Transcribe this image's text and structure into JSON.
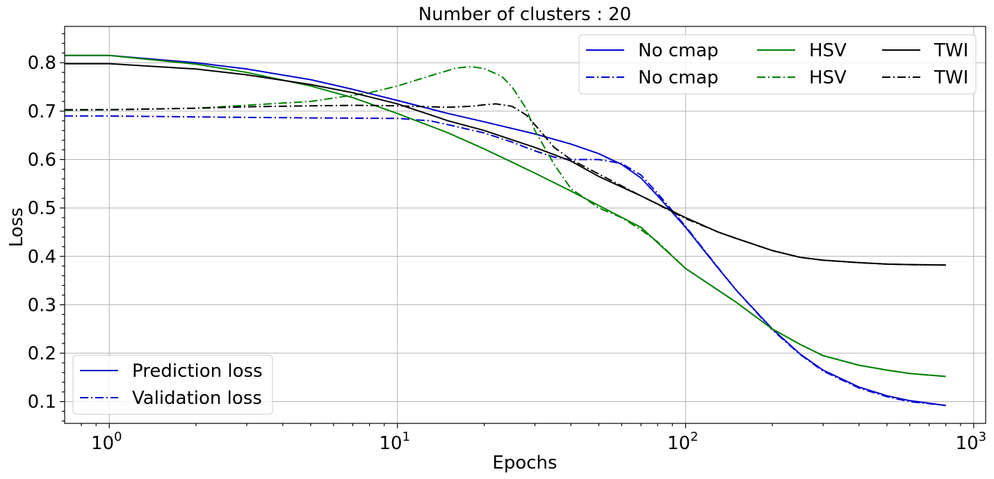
{
  "chart_data": {
    "type": "line",
    "title": "Number of clusters : 20",
    "xlabel": "Epochs",
    "ylabel": "Loss",
    "xscale": "log",
    "xlim": [
      0.7,
      1100
    ],
    "ylim": [
      0.055,
      0.875
    ],
    "xticks": [
      {
        "value": 1,
        "base": "10",
        "exp": "0"
      },
      {
        "value": 10,
        "base": "10",
        "exp": "1"
      },
      {
        "value": 100,
        "base": "10",
        "exp": "2"
      },
      {
        "value": 1000,
        "base": "10",
        "exp": "3"
      }
    ],
    "yticks": [
      {
        "value": 0.1,
        "label": "0.1"
      },
      {
        "value": 0.2,
        "label": "0.2"
      },
      {
        "value": 0.3,
        "label": "0.3"
      },
      {
        "value": 0.4,
        "label": "0.4"
      },
      {
        "value": 0.5,
        "label": "0.5"
      },
      {
        "value": 0.6,
        "label": "0.6"
      },
      {
        "value": 0.7,
        "label": "0.7"
      },
      {
        "value": 0.8,
        "label": "0.8"
      }
    ],
    "grid": true,
    "series": [
      {
        "name": "No cmap",
        "color": "#0000cc",
        "style": "solid",
        "points": [
          [
            0.7,
            0.815
          ],
          [
            1,
            0.815
          ],
          [
            2,
            0.8
          ],
          [
            3,
            0.787
          ],
          [
            5,
            0.765
          ],
          [
            7,
            0.745
          ],
          [
            10,
            0.722
          ],
          [
            15,
            0.695
          ],
          [
            20,
            0.678
          ],
          [
            30,
            0.653
          ],
          [
            40,
            0.632
          ],
          [
            50,
            0.612
          ],
          [
            60,
            0.59
          ],
          [
            70,
            0.562
          ],
          [
            80,
            0.525
          ],
          [
            100,
            0.46
          ],
          [
            130,
            0.375
          ],
          [
            150,
            0.33
          ],
          [
            200,
            0.25
          ],
          [
            250,
            0.198
          ],
          [
            300,
            0.165
          ],
          [
            400,
            0.13
          ],
          [
            500,
            0.112
          ],
          [
            600,
            0.102
          ],
          [
            800,
            0.092
          ]
        ]
      },
      {
        "name": "No cmap",
        "color": "#0000cc",
        "style": "dashdot",
        "points": [
          [
            0.7,
            0.69
          ],
          [
            1,
            0.69
          ],
          [
            2,
            0.688
          ],
          [
            5,
            0.686
          ],
          [
            10,
            0.685
          ],
          [
            13,
            0.68
          ],
          [
            15,
            0.672
          ],
          [
            20,
            0.655
          ],
          [
            25,
            0.636
          ],
          [
            30,
            0.618
          ],
          [
            35,
            0.605
          ],
          [
            40,
            0.6
          ],
          [
            50,
            0.6
          ],
          [
            60,
            0.592
          ],
          [
            70,
            0.568
          ],
          [
            80,
            0.53
          ],
          [
            100,
            0.462
          ],
          [
            130,
            0.376
          ],
          [
            150,
            0.33
          ],
          [
            200,
            0.248
          ],
          [
            250,
            0.197
          ],
          [
            300,
            0.163
          ],
          [
            400,
            0.128
          ],
          [
            500,
            0.11
          ],
          [
            600,
            0.1
          ],
          [
            800,
            0.092
          ]
        ]
      },
      {
        "name": "HSV",
        "color": "#008000",
        "style": "solid",
        "points": [
          [
            0.7,
            0.815
          ],
          [
            1,
            0.815
          ],
          [
            2,
            0.797
          ],
          [
            3,
            0.78
          ],
          [
            5,
            0.752
          ],
          [
            7,
            0.728
          ],
          [
            10,
            0.695
          ],
          [
            15,
            0.655
          ],
          [
            20,
            0.622
          ],
          [
            30,
            0.572
          ],
          [
            40,
            0.535
          ],
          [
            50,
            0.505
          ],
          [
            70,
            0.46
          ],
          [
            100,
            0.375
          ],
          [
            150,
            0.305
          ],
          [
            200,
            0.25
          ],
          [
            250,
            0.218
          ],
          [
            300,
            0.195
          ],
          [
            400,
            0.175
          ],
          [
            500,
            0.165
          ],
          [
            600,
            0.158
          ],
          [
            800,
            0.152
          ]
        ]
      },
      {
        "name": "HSV",
        "color": "#008000",
        "style": "dashdot",
        "points": [
          [
            0.7,
            0.702
          ],
          [
            1,
            0.703
          ],
          [
            2,
            0.706
          ],
          [
            5,
            0.72
          ],
          [
            8,
            0.738
          ],
          [
            10,
            0.752
          ],
          [
            13,
            0.773
          ],
          [
            16,
            0.789
          ],
          [
            18,
            0.792
          ],
          [
            20,
            0.788
          ],
          [
            23,
            0.772
          ],
          [
            25,
            0.75
          ],
          [
            28,
            0.705
          ],
          [
            30,
            0.66
          ],
          [
            35,
            0.59
          ],
          [
            40,
            0.54
          ],
          [
            50,
            0.5
          ],
          [
            60,
            0.48
          ],
          [
            70,
            0.455
          ],
          [
            80,
            0.43
          ],
          [
            100,
            0.375
          ],
          [
            150,
            0.305
          ],
          [
            200,
            0.25
          ],
          [
            250,
            0.218
          ],
          [
            300,
            0.195
          ],
          [
            400,
            0.175
          ],
          [
            500,
            0.165
          ],
          [
            600,
            0.158
          ],
          [
            800,
            0.152
          ]
        ]
      },
      {
        "name": "TWI",
        "color": "#000000",
        "style": "solid",
        "points": [
          [
            0.7,
            0.798
          ],
          [
            1,
            0.798
          ],
          [
            2,
            0.787
          ],
          [
            3,
            0.775
          ],
          [
            5,
            0.755
          ],
          [
            7,
            0.738
          ],
          [
            10,
            0.715
          ],
          [
            15,
            0.68
          ],
          [
            20,
            0.66
          ],
          [
            30,
            0.625
          ],
          [
            40,
            0.597
          ],
          [
            50,
            0.565
          ],
          [
            70,
            0.525
          ],
          [
            100,
            0.48
          ],
          [
            130,
            0.45
          ],
          [
            150,
            0.437
          ],
          [
            200,
            0.412
          ],
          [
            250,
            0.398
          ],
          [
            300,
            0.392
          ],
          [
            400,
            0.387
          ],
          [
            500,
            0.384
          ],
          [
            600,
            0.383
          ],
          [
            800,
            0.382
          ]
        ]
      },
      {
        "name": "TWI",
        "color": "#000000",
        "style": "dashdot",
        "points": [
          [
            0.7,
            0.703
          ],
          [
            1,
            0.703
          ],
          [
            2,
            0.706
          ],
          [
            3,
            0.709
          ],
          [
            5,
            0.711
          ],
          [
            7,
            0.712
          ],
          [
            10,
            0.711
          ],
          [
            15,
            0.708
          ],
          [
            18,
            0.71
          ],
          [
            20,
            0.713
          ],
          [
            22,
            0.715
          ],
          [
            25,
            0.71
          ],
          [
            28,
            0.692
          ],
          [
            30,
            0.672
          ],
          [
            35,
            0.625
          ],
          [
            40,
            0.6
          ],
          [
            50,
            0.57
          ],
          [
            70,
            0.525
          ],
          [
            100,
            0.478
          ],
          [
            130,
            0.45
          ],
          [
            150,
            0.437
          ],
          [
            200,
            0.412
          ],
          [
            250,
            0.398
          ],
          [
            300,
            0.392
          ],
          [
            400,
            0.387
          ],
          [
            500,
            0.384
          ],
          [
            600,
            0.383
          ],
          [
            800,
            0.382
          ]
        ]
      }
    ],
    "legend_top": {
      "placement": "top-right",
      "entries": [
        {
          "label": "No cmap",
          "color": "#0000cc",
          "style": "solid"
        },
        {
          "label": "No cmap",
          "color": "#0000cc",
          "style": "dashdot"
        },
        {
          "label": "HSV",
          "color": "#008000",
          "style": "solid"
        },
        {
          "label": "HSV",
          "color": "#008000",
          "style": "dashdot"
        },
        {
          "label": "TWI",
          "color": "#000000",
          "style": "solid"
        },
        {
          "label": "TWI",
          "color": "#000000",
          "style": "dashdot"
        }
      ]
    },
    "legend_bottom": {
      "placement": "bottom-left",
      "entries": [
        {
          "label": "Prediction loss",
          "color": "#0000cc",
          "style": "solid"
        },
        {
          "label": "Validation loss",
          "color": "#0000cc",
          "style": "dashdot"
        }
      ]
    }
  }
}
